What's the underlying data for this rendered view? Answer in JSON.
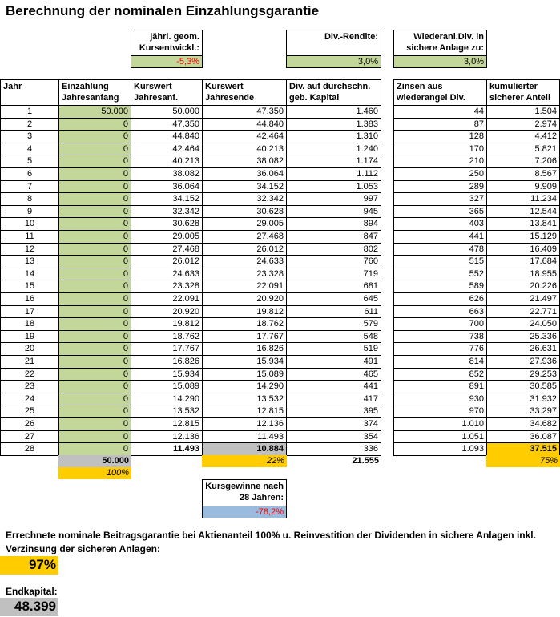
{
  "title": "Berechnung der nominalen Einzahlungsgarantie",
  "parameters": [
    {
      "label": "jährl. geom. Kursentwickl.:",
      "value": "-5,3%"
    },
    {
      "label": "Div.-Rendite:",
      "value": "3,0%"
    },
    {
      "label": "Wiederanl.Div. in sichere Anlage zu:",
      "value": "3,0%"
    }
  ],
  "table": {
    "header": [
      "Jahr",
      "Einzahlung Jahresanfang",
      "Kurswert Jahresanf.",
      "Kurswert Jahresende",
      "Div. auf durchschn. geb. Kapital",
      "Zinsen aus wiederangel Div.",
      "kumulierter sicherer Anteil"
    ],
    "rows": [
      [
        "1",
        "50.000",
        "50.000",
        "47.350",
        "1.460",
        "44",
        "1.504"
      ],
      [
        "2",
        "0",
        "47.350",
        "44.840",
        "1.383",
        "87",
        "2.974"
      ],
      [
        "3",
        "0",
        "44.840",
        "42.464",
        "1.310",
        "128",
        "4.412"
      ],
      [
        "4",
        "0",
        "42.464",
        "40.213",
        "1.240",
        "170",
        "5.821"
      ],
      [
        "5",
        "0",
        "40.213",
        "38.082",
        "1.174",
        "210",
        "7.206"
      ],
      [
        "6",
        "0",
        "38.082",
        "36.064",
        "1.112",
        "250",
        "8.567"
      ],
      [
        "7",
        "0",
        "36.064",
        "34.152",
        "1.053",
        "289",
        "9.909"
      ],
      [
        "8",
        "0",
        "34.152",
        "32.342",
        "997",
        "327",
        "11.234"
      ],
      [
        "9",
        "0",
        "32.342",
        "30.628",
        "945",
        "365",
        "12.544"
      ],
      [
        "10",
        "0",
        "30.628",
        "29.005",
        "894",
        "403",
        "13.841"
      ],
      [
        "11",
        "0",
        "29.005",
        "27.468",
        "847",
        "441",
        "15.129"
      ],
      [
        "12",
        "0",
        "27.468",
        "26.012",
        "802",
        "478",
        "16.409"
      ],
      [
        "13",
        "0",
        "26.012",
        "24.633",
        "760",
        "515",
        "17.684"
      ],
      [
        "14",
        "0",
        "24.633",
        "23.328",
        "719",
        "552",
        "18.955"
      ],
      [
        "15",
        "0",
        "23.328",
        "22.091",
        "681",
        "589",
        "20.226"
      ],
      [
        "16",
        "0",
        "22.091",
        "20.920",
        "645",
        "626",
        "21.497"
      ],
      [
        "17",
        "0",
        "20.920",
        "19.812",
        "611",
        "663",
        "22.771"
      ],
      [
        "18",
        "0",
        "19.812",
        "18.762",
        "579",
        "700",
        "24.050"
      ],
      [
        "19",
        "0",
        "18.762",
        "17.767",
        "548",
        "738",
        "25.336"
      ],
      [
        "20",
        "0",
        "17.767",
        "16.826",
        "519",
        "776",
        "26.631"
      ],
      [
        "21",
        "0",
        "16.826",
        "15.934",
        "491",
        "814",
        "27.936"
      ],
      [
        "22",
        "0",
        "15.934",
        "15.089",
        "465",
        "852",
        "29.253"
      ],
      [
        "23",
        "0",
        "15.089",
        "14.290",
        "441",
        "891",
        "30.585"
      ],
      [
        "24",
        "0",
        "14.290",
        "13.532",
        "417",
        "930",
        "31.932"
      ],
      [
        "25",
        "0",
        "13.532",
        "12.815",
        "395",
        "970",
        "33.297"
      ],
      [
        "26",
        "0",
        "12.815",
        "12.136",
        "374",
        "1.010",
        "34.682"
      ],
      [
        "27",
        "0",
        "12.136",
        "11.493",
        "354",
        "1.051",
        "36.087"
      ],
      [
        "28",
        "0",
        "11.493",
        "10.884",
        "336",
        "1.093",
        "37.515"
      ]
    ],
    "sum_row": {
      "einzahlung": "50.000",
      "kurswert_ende_pct": "22%",
      "dividenden": "21.555",
      "sicherer_anteil_pct": "75%"
    },
    "einzahlung_pct": "100%"
  },
  "kursgewinne": {
    "label": "Kursgewinne nach 28 Jahren:",
    "value": "-78,2%"
  },
  "result": {
    "text": "Errechnete nominale Beitragsgarantie bei Aktienanteil 100% u. Reinvestition der Dividenden in sichere Anlagen inkl. Verzinsung der sicheren Anlagen:",
    "value": "97%"
  },
  "endkapital": {
    "label": "Endkapital:",
    "value": "48.399"
  }
}
